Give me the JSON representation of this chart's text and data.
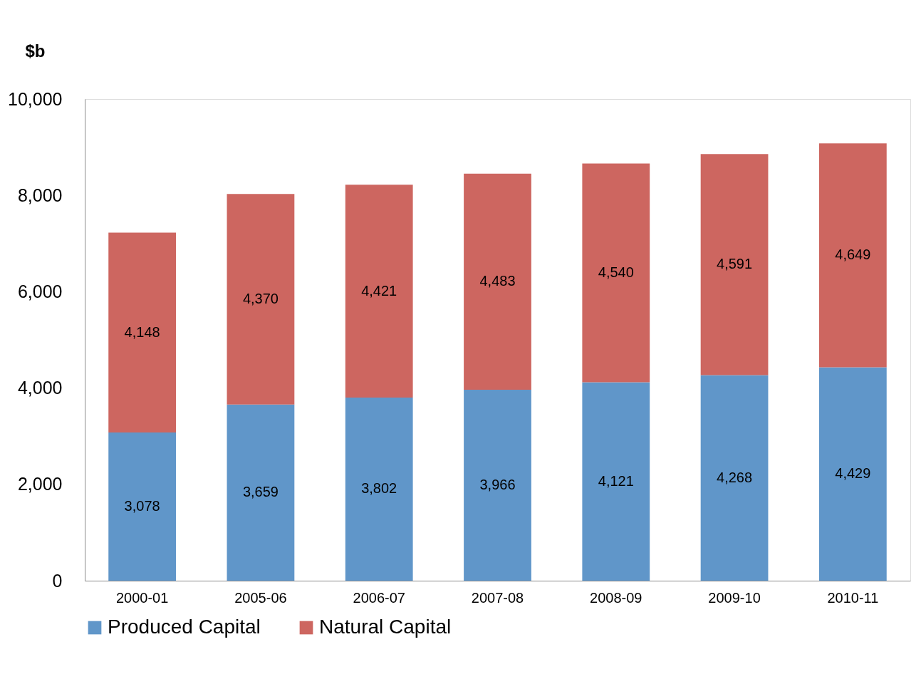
{
  "chart_data": {
    "type": "bar",
    "ylabel": "$b",
    "stacked": true,
    "legend": "bottom",
    "grid": false,
    "categories": [
      "2000-01",
      "2005-06",
      "2006-07",
      "2007-08",
      "2008-09",
      "2009-10",
      "2010-11"
    ],
    "series": [
      {
        "name": "Produced Capital",
        "color": "#6096c9",
        "values": [
          3078,
          3659,
          3802,
          3966,
          4121,
          4268,
          4429
        ],
        "value_labels": [
          "3,078",
          "3,659",
          "3,802",
          "3,966",
          "4,121",
          "4,268",
          "4,429"
        ]
      },
      {
        "name": "Natural Capital",
        "color": "#cd6660",
        "values": [
          4148,
          4370,
          4421,
          4483,
          4540,
          4591,
          4649
        ],
        "value_labels": [
          "4,148",
          "4,370",
          "4,421",
          "4,483",
          "4,540",
          "4,591",
          "4,649"
        ]
      }
    ],
    "ylim": [
      0,
      10000
    ],
    "yticks": [
      {
        "value": 0,
        "label": "0"
      },
      {
        "value": 2000,
        "label": "2,000"
      },
      {
        "value": 4000,
        "label": "4,000"
      },
      {
        "value": 6000,
        "label": "6,000"
      },
      {
        "value": 8000,
        "label": "8,000"
      },
      {
        "value": 10000,
        "label": "10,000"
      }
    ]
  }
}
